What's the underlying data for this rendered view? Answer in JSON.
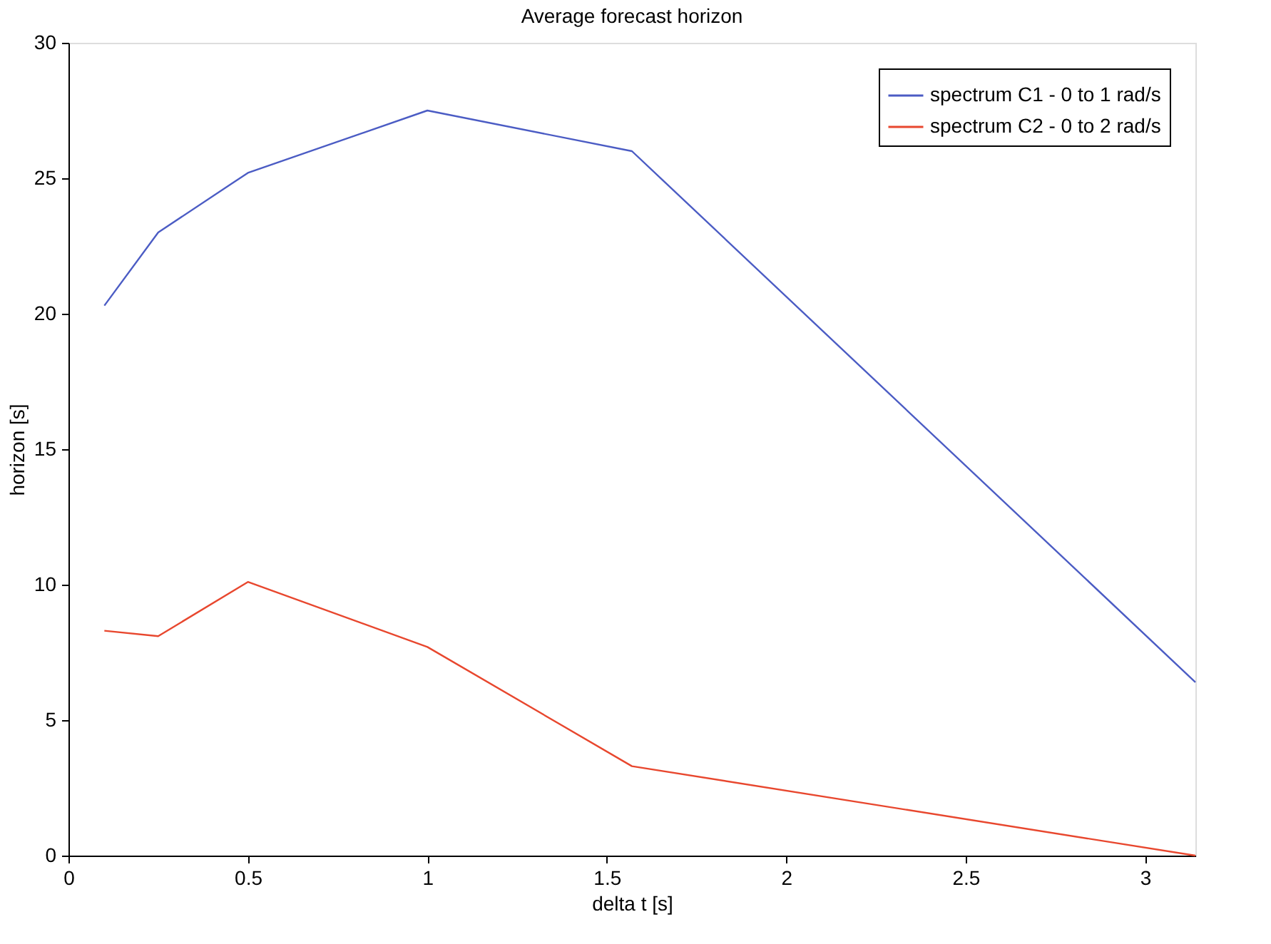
{
  "chart_data": {
    "type": "line",
    "title": "Average forecast horizon",
    "xlabel": "delta t [s]",
    "ylabel": "horizon [s]",
    "series": [
      {
        "name": "spectrum C1 - 0 to 1 rad/s",
        "color": "#4b5cc4",
        "x": [
          0.1,
          0.25,
          0.5,
          1,
          1.57,
          3.14
        ],
        "values": [
          20.3,
          23,
          25.2,
          27.5,
          26,
          6.4
        ]
      },
      {
        "name": "spectrum C2 - 0 to 2 rad/s",
        "color": "#e8472e",
        "x": [
          0.1,
          0.25,
          0.5,
          1,
          1.57,
          3.14
        ],
        "values": [
          8.3,
          8.1,
          10.1,
          7.7,
          3.3,
          0
        ]
      }
    ],
    "xlim": [
      0,
      3.14
    ],
    "xticks": [
      0,
      0.5,
      1,
      1.5,
      2,
      2.5,
      3
    ],
    "ylim": [
      0,
      30
    ],
    "yticks": [
      0,
      5,
      10,
      15,
      20,
      25,
      30
    ],
    "grid": false,
    "legend": "top right",
    "marker": "none",
    "line_style": "solid"
  }
}
